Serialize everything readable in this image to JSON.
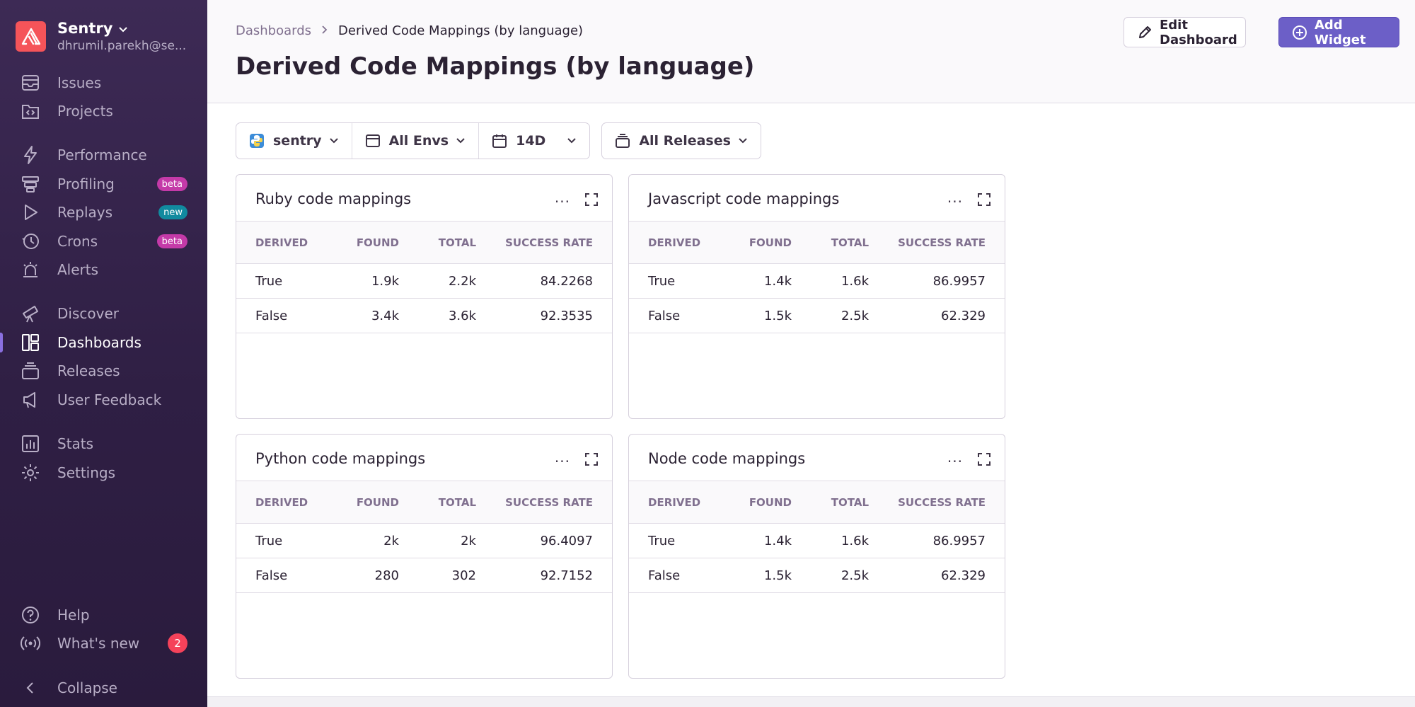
{
  "org": {
    "name": "Sentry",
    "email": "dhrumil.parekh@se..."
  },
  "nav": {
    "issues": "Issues",
    "projects": "Projects",
    "performance": "Performance",
    "profiling": "Profiling",
    "profiling_badge": "beta",
    "replays": "Replays",
    "replays_badge": "new",
    "crons": "Crons",
    "crons_badge": "beta",
    "alerts": "Alerts",
    "discover": "Discover",
    "dashboards": "Dashboards",
    "releases": "Releases",
    "user_feedback": "User Feedback",
    "stats": "Stats",
    "settings": "Settings",
    "help": "Help",
    "whats_new": "What's new",
    "whats_new_count": "2",
    "collapse": "Collapse"
  },
  "header": {
    "breadcrumb_root": "Dashboards",
    "breadcrumb_current": "Derived Code Mappings (by language)",
    "title": "Derived Code Mappings (by language)",
    "edit_label": "Edit Dashboard",
    "add_label": "Add Widget"
  },
  "filters": {
    "project": "sentry",
    "environment": "All Envs",
    "period": "14D",
    "releases": "All Releases"
  },
  "table_headers": [
    "Derived",
    "Found",
    "Total",
    "Success Rate"
  ],
  "widgets": [
    {
      "title": "Ruby code mappings",
      "rows": [
        [
          "True",
          "1.9k",
          "2.2k",
          "84.2268"
        ],
        [
          "False",
          "3.4k",
          "3.6k",
          "92.3535"
        ]
      ]
    },
    {
      "title": "Javascript code mappings",
      "rows": [
        [
          "True",
          "1.4k",
          "1.6k",
          "86.9957"
        ],
        [
          "False",
          "1.5k",
          "2.5k",
          "62.329"
        ]
      ]
    },
    {
      "title": "Python code mappings",
      "rows": [
        [
          "True",
          "2k",
          "2k",
          "96.4097"
        ],
        [
          "False",
          "280",
          "302",
          "92.7152"
        ]
      ]
    },
    {
      "title": "Node code mappings",
      "rows": [
        [
          "True",
          "1.4k",
          "1.6k",
          "86.9957"
        ],
        [
          "False",
          "1.5k",
          "2.5k",
          "62.329"
        ]
      ]
    }
  ],
  "widget_more": "···",
  "colors": {
    "sidebar": "#3d2a55",
    "accent": "#6c5fc7",
    "logo": "#f55459",
    "beta": "#c43aa8",
    "new": "#118a9f",
    "count": "#f5425a"
  }
}
